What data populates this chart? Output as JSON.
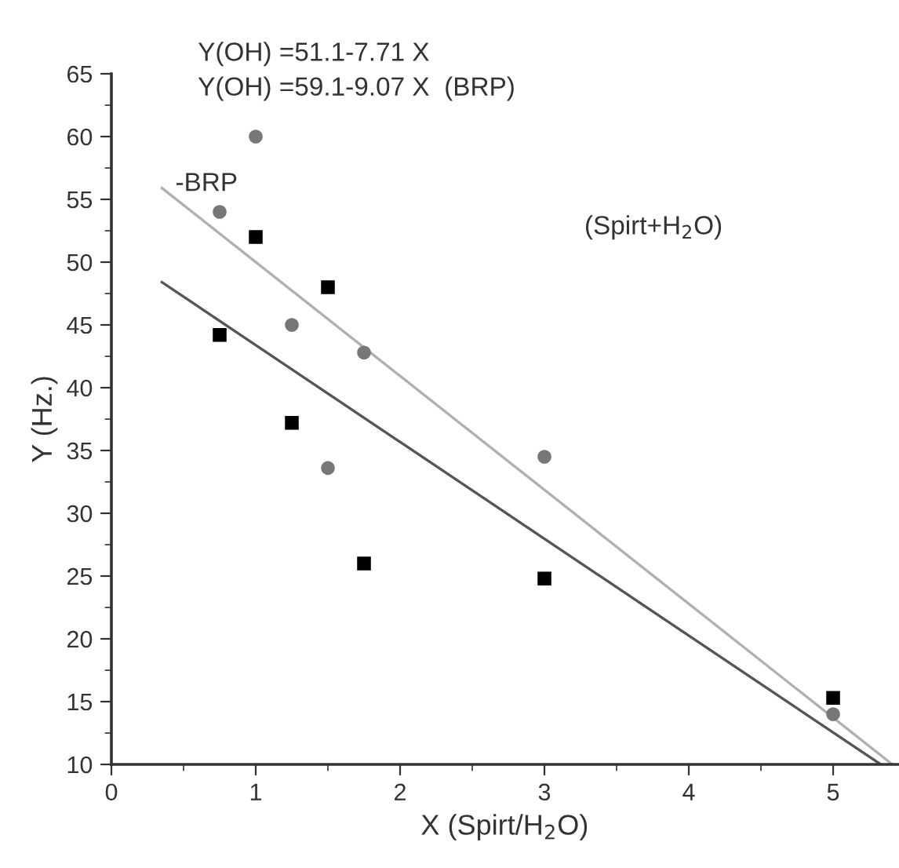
{
  "chart_data": {
    "type": "scatter",
    "xlabel": "X (Spirt/H$_{2}$O)",
    "ylabel": "Y (Hz.)",
    "xlim": [
      0,
      5.45
    ],
    "ylim": [
      10,
      65
    ],
    "xticks": [
      0,
      {
        "value": 0.5,
        "label": null
      },
      1,
      {
        "value": 1.5,
        "label": null
      },
      2,
      {
        "value": 2.5,
        "label": null
      },
      3,
      {
        "value": 3.5,
        "label": null
      },
      4,
      {
        "value": 4.5,
        "label": null
      },
      5
    ],
    "yticks": [
      10,
      {
        "value": 12.5,
        "label": null
      },
      15,
      {
        "value": 17.5,
        "label": null
      },
      20,
      {
        "value": 22.5,
        "label": null
      },
      25,
      {
        "value": 27.5,
        "label": null
      },
      30,
      {
        "value": 32.5,
        "label": null
      },
      35,
      {
        "value": 37.5,
        "label": null
      },
      40,
      {
        "value": 42.5,
        "label": null
      },
      45,
      {
        "value": 47.5,
        "label": null
      },
      50,
      {
        "value": 52.5,
        "label": null
      },
      55,
      {
        "value": 57.5,
        "label": null
      },
      60,
      {
        "value": 62.5,
        "label": null
      },
      65
    ],
    "grid": false,
    "legend": false,
    "series": [
      {
        "marker": "square",
        "color": "#000000",
        "x": [
          0.75,
          1,
          1.25,
          1.5,
          1.75,
          3,
          5
        ],
        "values": [
          44.2,
          52,
          37.2,
          48,
          26,
          24.8,
          15.3
        ]
      },
      {
        "marker": "circle",
        "color": "#777777",
        "x": [
          0.75,
          1,
          1.25,
          1.5,
          1.75,
          3,
          5
        ],
        "values": [
          54,
          60,
          45,
          33.6,
          42.8,
          34.5,
          14
        ]
      },
      {
        "type": "line",
        "marker": "none",
        "line_style": "solid",
        "color": "#555555",
        "x": [
          0.35,
          5.33
        ],
        "values": [
          48.4,
          10
        ]
      },
      {
        "type": "line",
        "marker": "none",
        "line_style": "solid",
        "color": "#b0b0b0",
        "x": [
          0.35,
          5.41
        ],
        "values": [
          55.9,
          10
        ]
      }
    ],
    "annotations": [
      "Y(OH) =51.1-7.71 X",
      "Y(OH) =59.1-9.07 X  (BRP)",
      "-BRP",
      "(Spirt+H$_{2}$O)"
    ]
  }
}
